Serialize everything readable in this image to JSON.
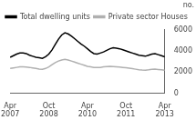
{
  "chart_data": {
    "type": "line",
    "ylabel": "no.",
    "categories": [
      "Apr\n2007",
      null,
      null,
      null,
      null,
      null,
      null,
      null,
      null,
      null,
      null,
      null,
      "Oct\n2008",
      null,
      null,
      null,
      null,
      null,
      null,
      null,
      null,
      null,
      null,
      null,
      "Apr\n2010",
      null,
      null,
      null,
      null,
      null,
      null,
      null,
      null,
      null,
      null,
      null,
      "Oct\n2011",
      null,
      null,
      null,
      null,
      null,
      null,
      null,
      null,
      null,
      null,
      null,
      "Apr\n2013"
    ],
    "series": [
      {
        "name": "Total dwelling units",
        "color": "#000000",
        "values": [
          3400,
          3550,
          3700,
          3800,
          3800,
          3750,
          3600,
          3500,
          3400,
          3350,
          3300,
          3450,
          3700,
          4100,
          4600,
          5100,
          5500,
          5700,
          5600,
          5400,
          5150,
          4900,
          4650,
          4450,
          4200,
          3950,
          3750,
          3700,
          3800,
          3900,
          4050,
          4200,
          4300,
          4250,
          4200,
          4100,
          4000,
          3900,
          3800,
          3700,
          3600,
          3550,
          3500,
          3600,
          3700,
          3750,
          3650,
          3550,
          3450
        ]
      },
      {
        "name": "Private sector Houses",
        "color": "#b0b0b0",
        "values": [
          2350,
          2400,
          2450,
          2500,
          2500,
          2480,
          2450,
          2400,
          2350,
          2300,
          2280,
          2350,
          2500,
          2700,
          2900,
          3050,
          3150,
          3200,
          3150,
          3050,
          2950,
          2850,
          2750,
          2650,
          2550,
          2500,
          2450,
          2430,
          2450,
          2500,
          2530,
          2540,
          2520,
          2500,
          2480,
          2450,
          2420,
          2380,
          2330,
          2280,
          2230,
          2200,
          2190,
          2220,
          2260,
          2280,
          2250,
          2220,
          2190
        ]
      }
    ],
    "ylim": [
      0,
      6000
    ],
    "yticks": [
      0,
      2000,
      4000,
      6000
    ],
    "grid": false,
    "legend": "upper left"
  }
}
